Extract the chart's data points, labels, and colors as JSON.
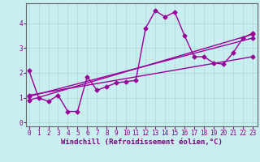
{
  "background_color": "#c8eef0",
  "line_color": "#990099",
  "marker": "D",
  "markersize": 2.5,
  "linewidth": 1.0,
  "xlabel": "Windchill (Refroidissement éolien,°C)",
  "xlabel_fontsize": 6.5,
  "xlabel_color": "#800080",
  "xtick_labels": [
    "0",
    "1",
    "2",
    "3",
    "4",
    "5",
    "6",
    "7",
    "8",
    "9",
    "10",
    "11",
    "12",
    "13",
    "14",
    "15",
    "16",
    "17",
    "18",
    "19",
    "20",
    "21",
    "22",
    "23"
  ],
  "ytick_labels": [
    "0",
    "1",
    "2",
    "3",
    "4"
  ],
  "ylim": [
    -0.15,
    4.8
  ],
  "xlim": [
    -0.3,
    23.5
  ],
  "grid_color": "#aad8da",
  "tick_fontsize": 5.5,
  "tick_color": "#800080",
  "series_main": {
    "x": [
      0,
      1,
      2,
      3,
      4,
      5,
      6,
      7,
      8,
      9,
      10,
      11,
      12,
      13,
      14,
      15,
      16,
      17,
      18,
      19,
      20,
      21,
      22,
      23
    ],
    "y": [
      2.1,
      1.0,
      0.85,
      1.1,
      0.45,
      0.45,
      1.85,
      1.3,
      1.45,
      1.6,
      1.65,
      1.7,
      3.8,
      4.5,
      4.25,
      4.45,
      3.5,
      2.65,
      2.65,
      2.4,
      2.35,
      2.8,
      3.4,
      3.6
    ]
  },
  "series_lines": [
    {
      "x": [
        0,
        23
      ],
      "y": [
        0.9,
        3.55
      ]
    },
    {
      "x": [
        0,
        23
      ],
      "y": [
        1.05,
        3.4
      ]
    },
    {
      "x": [
        0,
        23
      ],
      "y": [
        1.1,
        2.65
      ]
    }
  ]
}
